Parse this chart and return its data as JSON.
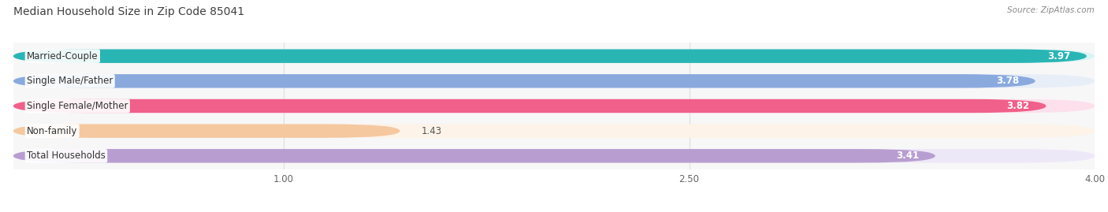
{
  "title": "Median Household Size in Zip Code 85041",
  "source": "Source: ZipAtlas.com",
  "categories": [
    "Married-Couple",
    "Single Male/Father",
    "Single Female/Mother",
    "Non-family",
    "Total Households"
  ],
  "values": [
    3.97,
    3.78,
    3.82,
    1.43,
    3.41
  ],
  "bar_colors": [
    "#2ab5b5",
    "#8aaade",
    "#f0608a",
    "#f5c8a0",
    "#b89ed0"
  ],
  "bar_bg_colors": [
    "#daf4f4",
    "#e8eef8",
    "#fde0ec",
    "#fdf3e8",
    "#ede8f8"
  ],
  "value_labels": [
    "3.97",
    "3.78",
    "3.82",
    "1.43",
    "3.41"
  ],
  "xmin": 0.0,
  "xmax": 4.0,
  "xticks": [
    1.0,
    2.5,
    4.0
  ],
  "xtick_labels": [
    "1.00",
    "2.50",
    "4.00"
  ],
  "background_color": "#ffffff",
  "plot_bg_color": "#f7f7f7",
  "bar_height": 0.55,
  "title_fontsize": 10,
  "label_fontsize": 8.5,
  "value_fontsize": 8.5,
  "tick_fontsize": 8.5,
  "grid_color": "#dddddd",
  "label_bg_color": "#ffffff"
}
